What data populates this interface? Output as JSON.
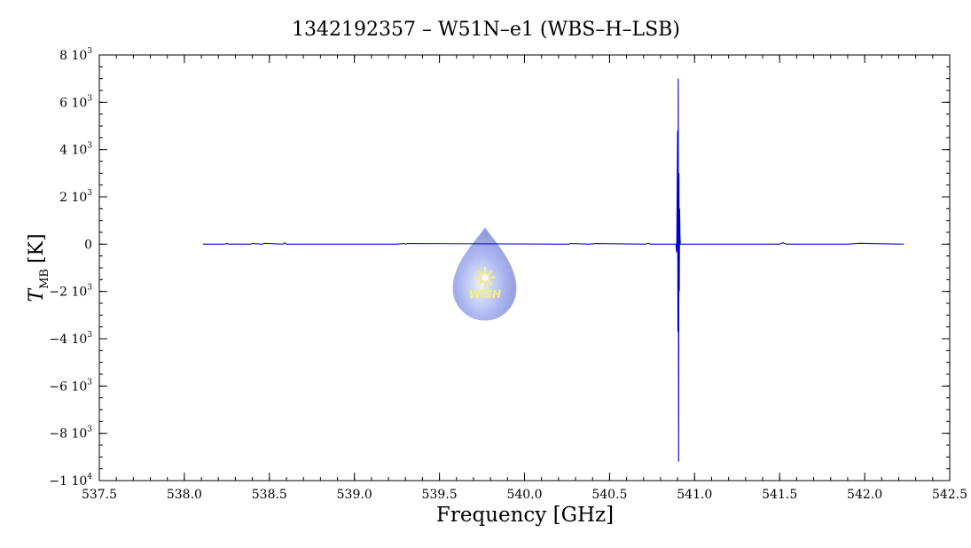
{
  "chart_data": {
    "type": "line",
    "title": "1342192357 – W51N–e1 (WBS–H–LSB)",
    "xlabel": "Frequency [GHz]",
    "ylabel": {
      "symbol": "T",
      "subscript": "MB",
      "unit": "[K]"
    },
    "xlim": [
      537.5,
      542.5
    ],
    "ylim": [
      -10000,
      8000
    ],
    "x_ticks": [
      {
        "value": 537.5,
        "label": "537.5"
      },
      {
        "value": 538.0,
        "label": "538.0"
      },
      {
        "value": 538.5,
        "label": "538.5"
      },
      {
        "value": 539.0,
        "label": "539.0"
      },
      {
        "value": 539.5,
        "label": "539.5"
      },
      {
        "value": 540.0,
        "label": "540.0"
      },
      {
        "value": 540.5,
        "label": "540.5"
      },
      {
        "value": 541.0,
        "label": "541.0"
      },
      {
        "value": 541.5,
        "label": "541.5"
      },
      {
        "value": 542.0,
        "label": "542.0"
      },
      {
        "value": 542.5,
        "label": "542.5"
      }
    ],
    "y_ticks": [
      {
        "value": 8000,
        "mant": "8 10",
        "exp": "3"
      },
      {
        "value": 6000,
        "mant": "6 10",
        "exp": "3"
      },
      {
        "value": 4000,
        "mant": "4 10",
        "exp": "3"
      },
      {
        "value": 2000,
        "mant": "2 10",
        "exp": "3"
      },
      {
        "value": 0,
        "mant": "0",
        "exp": ""
      },
      {
        "value": -2000,
        "mant": "−2 10",
        "exp": "3"
      },
      {
        "value": -4000,
        "mant": "−4 10",
        "exp": "3"
      },
      {
        "value": -6000,
        "mant": "−6 10",
        "exp": "3"
      },
      {
        "value": -8000,
        "mant": "−8 10",
        "exp": "3"
      },
      {
        "value": -10000,
        "mant": "−1 10",
        "exp": "4"
      }
    ],
    "grid": false,
    "series": [
      {
        "color": "#0000cc",
        "x": [
          538.11,
          538.24,
          538.25,
          538.26,
          538.39,
          538.4,
          538.46,
          538.47,
          538.58,
          538.59,
          538.6,
          539.25,
          539.29,
          539.3,
          539.31,
          540.23,
          540.26,
          540.27,
          540.38,
          540.42,
          540.71,
          540.73,
          540.74,
          540.89,
          540.895,
          540.9,
          540.902,
          540.904,
          540.906,
          540.908,
          540.91,
          540.912,
          540.914,
          540.916,
          540.92,
          540.93,
          541.06,
          541.14,
          541.5,
          541.52,
          541.54,
          541.9,
          541.97,
          542.23
        ],
        "y": [
          0,
          0,
          40,
          0,
          0,
          30,
          0,
          40,
          0,
          60,
          0,
          0,
          30,
          0,
          30,
          0,
          0,
          30,
          0,
          30,
          0,
          40,
          0,
          0,
          -350,
          4800,
          -3700,
          7000,
          -9200,
          3000,
          -2000,
          1500,
          400,
          0,
          0,
          0,
          0,
          0,
          0,
          60,
          0,
          0,
          40,
          0
        ]
      }
    ]
  },
  "logo": {
    "text": "WISH"
  }
}
